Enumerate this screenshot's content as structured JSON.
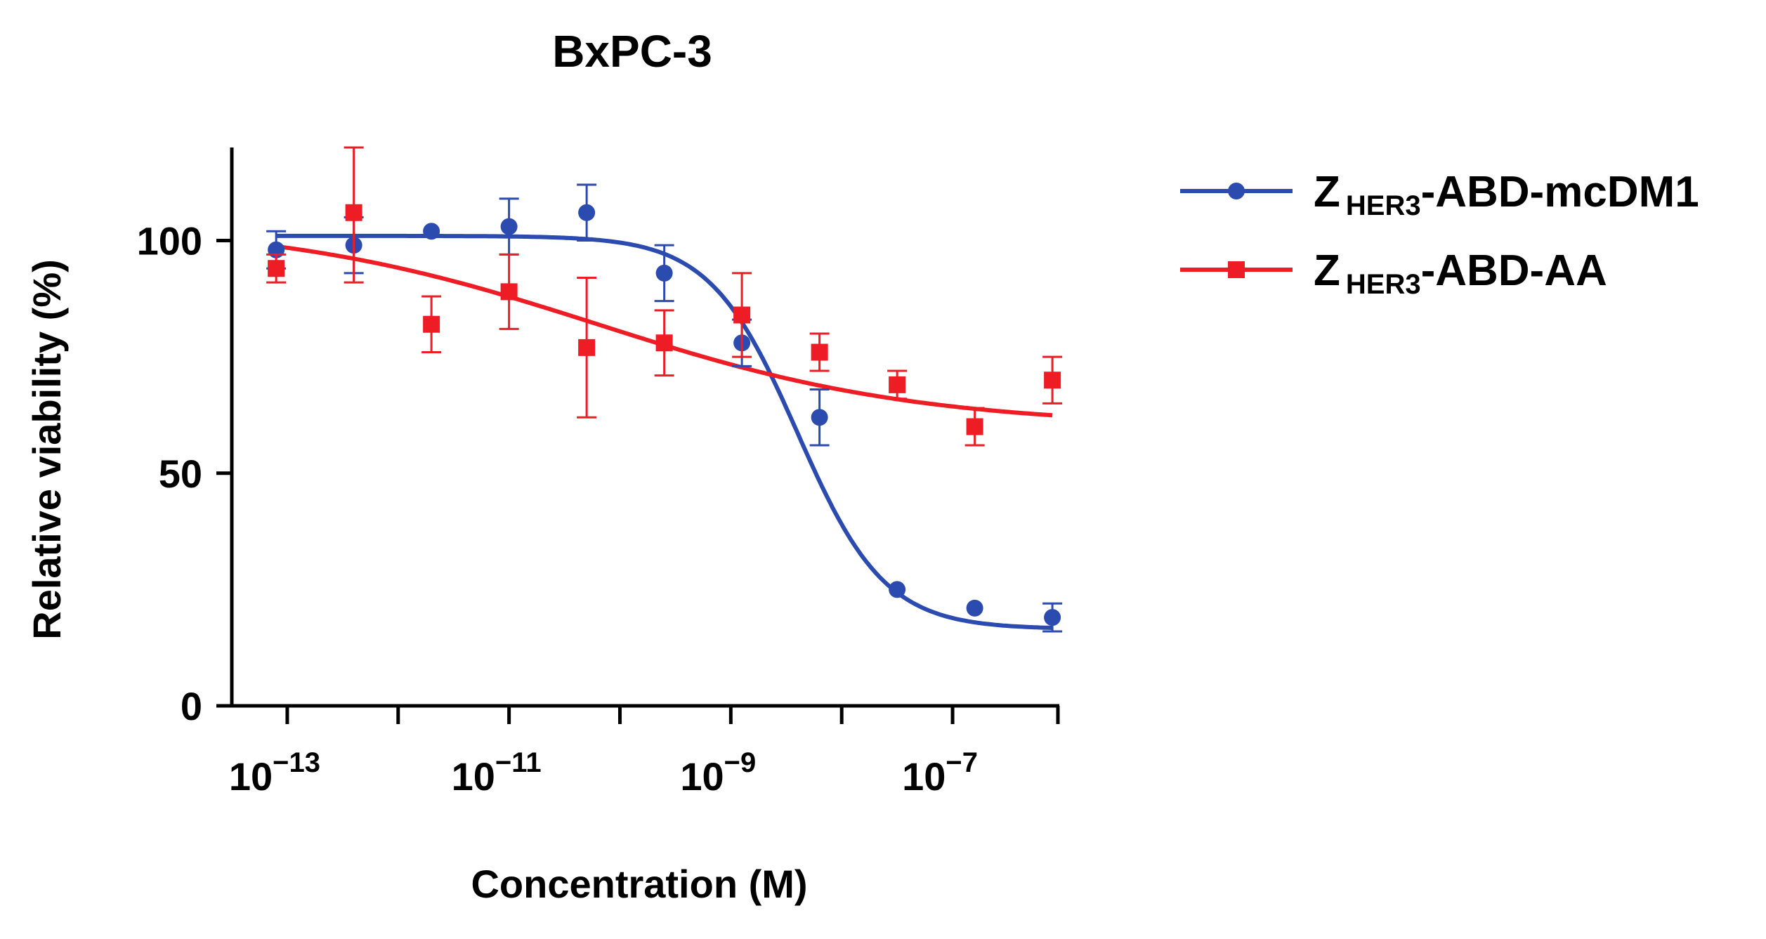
{
  "chart_data": {
    "type": "scatter",
    "title": "BxPC-3",
    "xlabel": "Concentration (M)",
    "ylabel": "Relative viability (%)",
    "x_scale": "log10",
    "xlim_log10": [
      -13.5,
      -6.05
    ],
    "ylim": [
      0,
      120
    ],
    "x_ticks": [
      {
        "base": "10",
        "exp": "−13"
      },
      {
        "base": "10",
        "exp": "−11"
      },
      {
        "base": "10",
        "exp": "−9"
      },
      {
        "base": "10",
        "exp": "−7"
      }
    ],
    "x_tick_values_log10": [
      -13,
      -11,
      -9,
      -7
    ],
    "x_minor_ticks_log10": [
      -12,
      -10,
      -8,
      -6
    ],
    "y_ticks": [
      0,
      50,
      100
    ],
    "series": [
      {
        "name": "Z",
        "name_sub": "HER3",
        "name_rest": "-ABD-mcDM1",
        "color": "#2B4BAE",
        "marker": "circle",
        "x_log10": [
          -13.1,
          -12.4,
          -11.7,
          -11.0,
          -10.3,
          -9.6,
          -8.9,
          -8.2,
          -7.5,
          -6.8,
          -6.1
        ],
        "y": [
          98,
          99,
          102,
          103,
          106,
          93,
          78,
          62,
          25,
          21,
          19
        ],
        "err": [
          4,
          6,
          0,
          6,
          6,
          6,
          5,
          6,
          0,
          0,
          3
        ],
        "fit": {
          "model": "4PL",
          "top": 101,
          "bottom": 16.5,
          "logIC50": -8.4,
          "hill": 1.1
        }
      },
      {
        "name": "Z",
        "name_sub": "HER3",
        "name_rest": "-ABD-AA",
        "color": "#EE1C25",
        "marker": "square",
        "x_log10": [
          -13.1,
          -12.4,
          -11.7,
          -11.0,
          -10.3,
          -9.6,
          -8.9,
          -8.2,
          -7.5,
          -6.8,
          -6.1
        ],
        "y": [
          94,
          106,
          82,
          89,
          77,
          78,
          84,
          76,
          69,
          60,
          70
        ],
        "err": [
          3,
          15,
          6,
          8,
          15,
          7,
          9,
          4,
          3,
          4,
          5
        ],
        "fit": {
          "model": "4PL",
          "top": 104,
          "bottom": 60,
          "logIC50": -10.2,
          "hill": 0.3
        }
      }
    ],
    "legend_position": "top-right"
  }
}
